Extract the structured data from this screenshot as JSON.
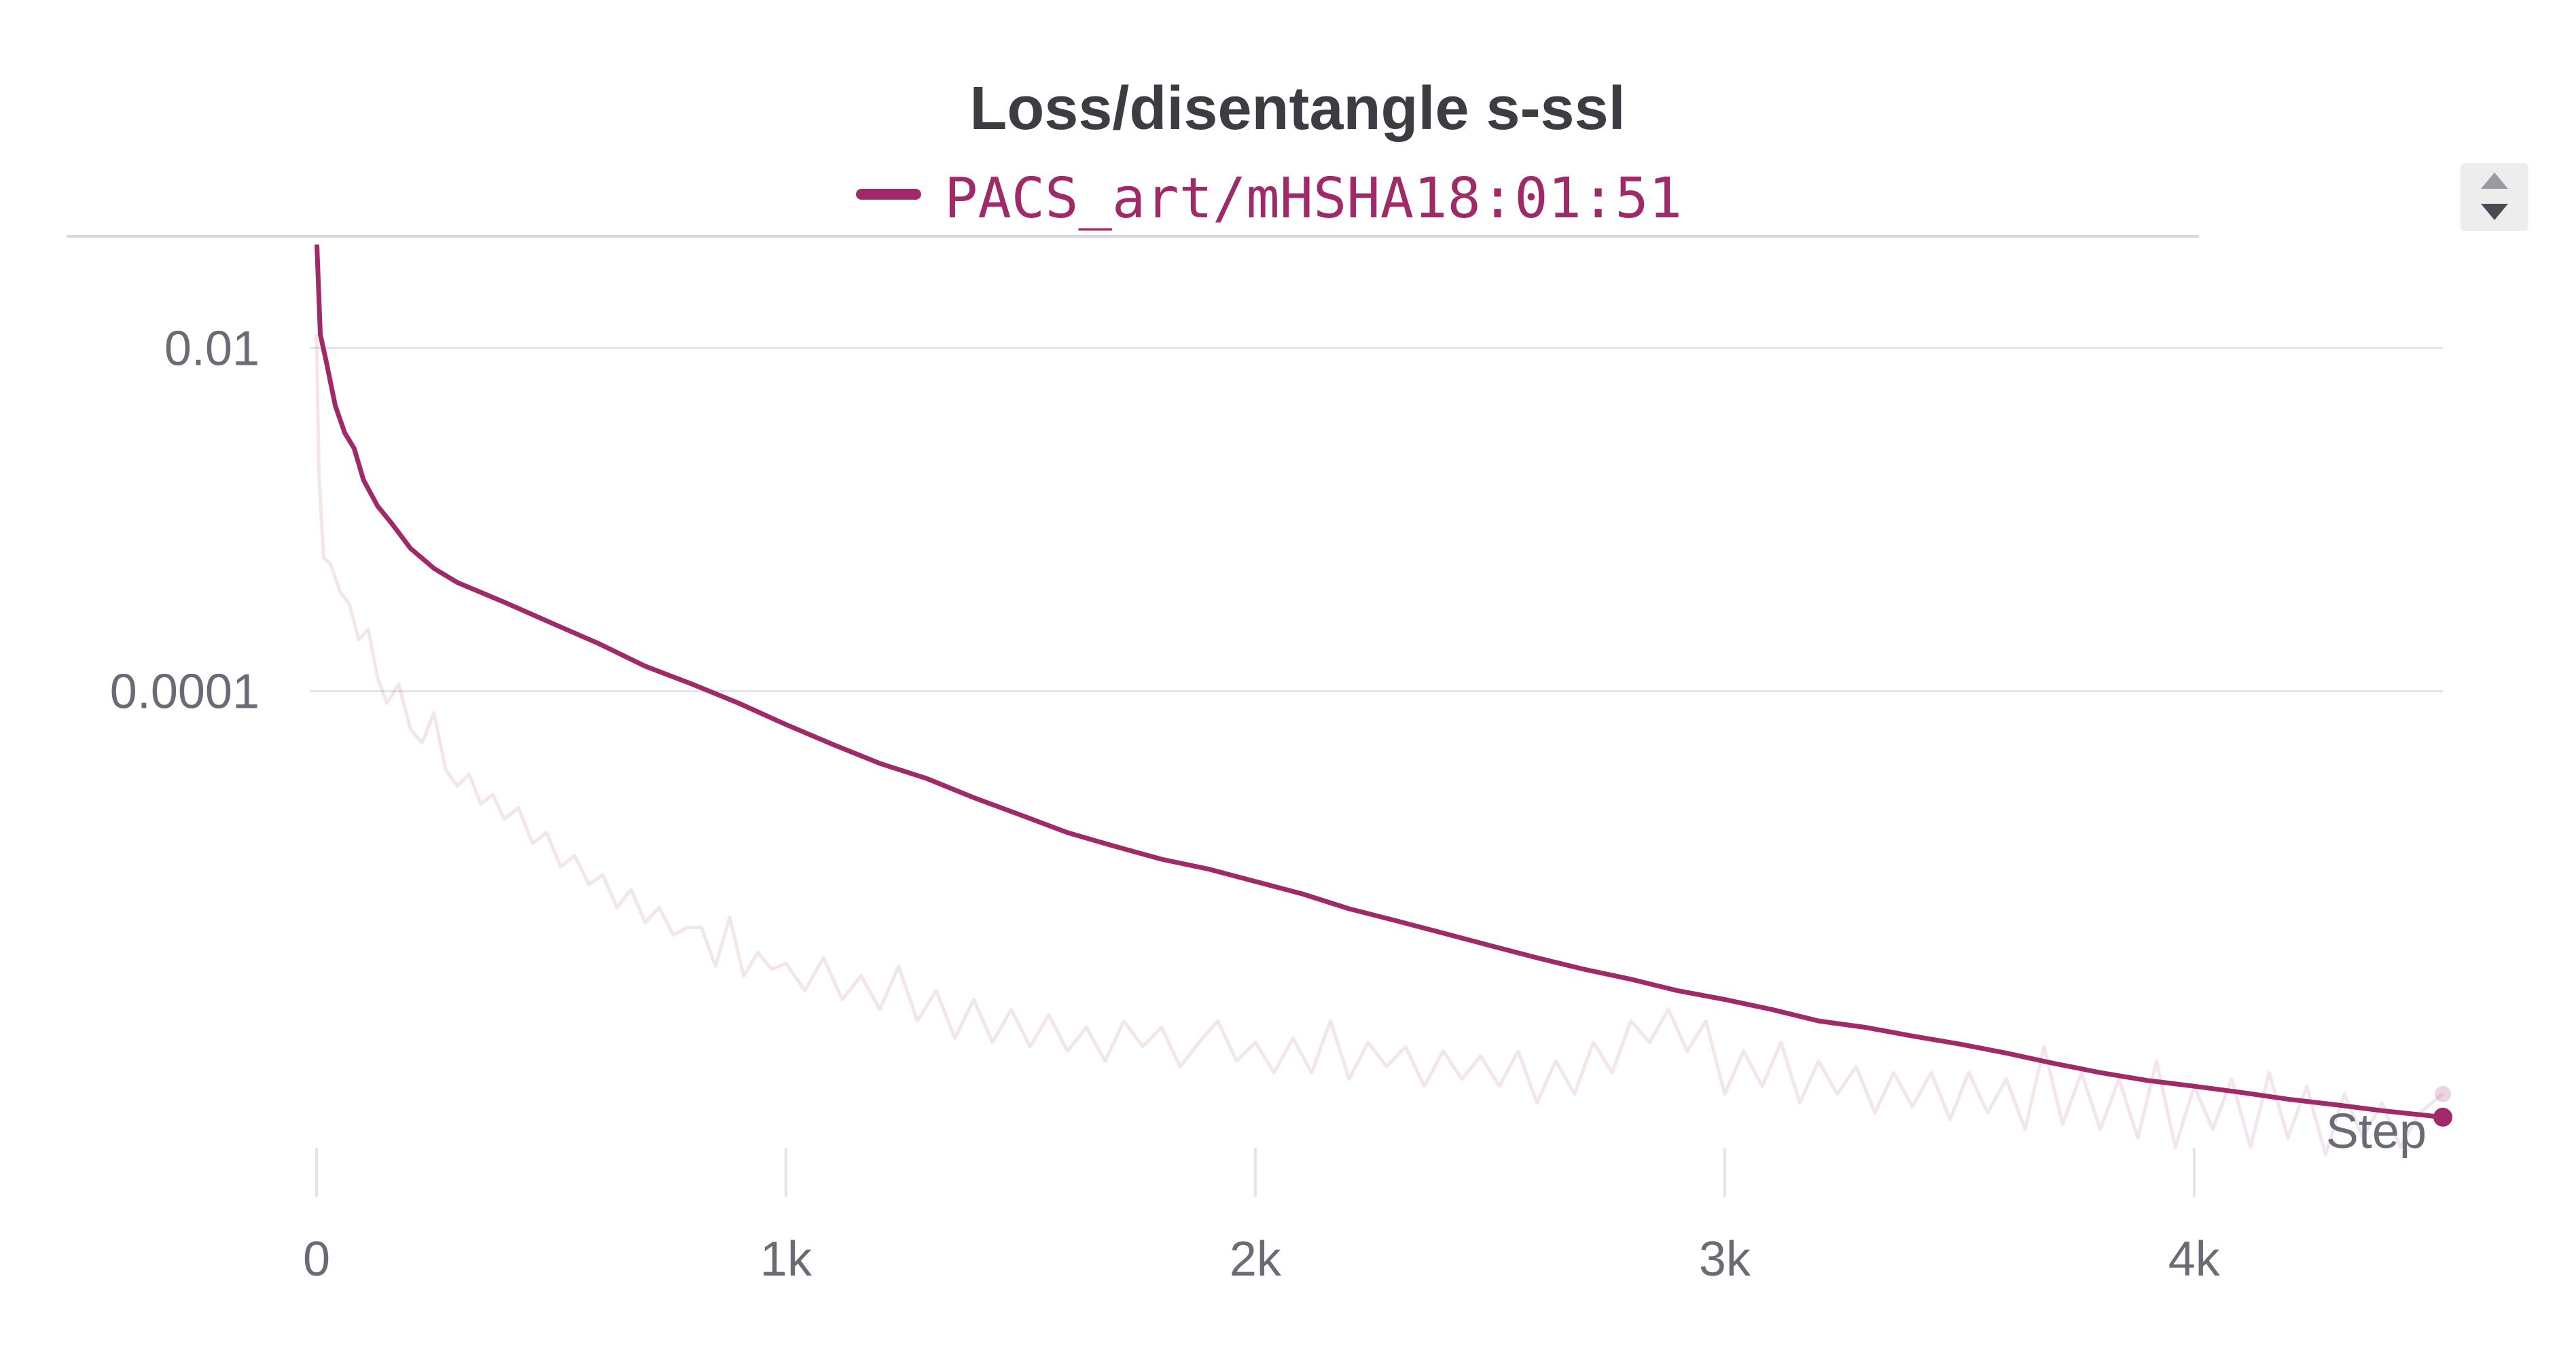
{
  "chart_data": {
    "type": "line",
    "title": "Loss/disentangle s-ssl",
    "xlabel": "Step",
    "ylabel": "",
    "x_tick_labels": [
      "0",
      "1k",
      "2k",
      "3k",
      "4k"
    ],
    "x_ticks": [
      0,
      1000,
      2000,
      3000,
      4000
    ],
    "y_tick_labels": [
      "0.01",
      "0.0001"
    ],
    "y_ticks": [
      0.01,
      0.0001
    ],
    "y_scale": "log",
    "xlim": [
      0,
      4530
    ],
    "ylim_log10": [
      -6.7,
      -1.35
    ],
    "grid": true,
    "legend_position": "top-center",
    "series": [
      {
        "name": "PACS_art/mHSHA18:01:51",
        "color": "#a02a68",
        "smoothed": [
          [
            0,
            0.045
          ],
          [
            8,
            0.012
          ],
          [
            20,
            0.0085
          ],
          [
            40,
            0.0046
          ],
          [
            60,
            0.0032
          ],
          [
            80,
            0.0026
          ],
          [
            100,
            0.0017
          ],
          [
            130,
            0.0012
          ],
          [
            160,
            0.00095
          ],
          [
            200,
            0.00068
          ],
          [
            250,
            0.00052
          ],
          [
            300,
            0.00043
          ],
          [
            400,
            0.00033
          ],
          [
            500,
            0.00025
          ],
          [
            600,
            0.00019
          ],
          [
            700,
            0.00014
          ],
          [
            800,
            0.00011
          ],
          [
            900,
            8.5e-05
          ],
          [
            1000,
            6.4e-05
          ],
          [
            1100,
            4.9e-05
          ],
          [
            1200,
            3.8e-05
          ],
          [
            1300,
            3.1e-05
          ],
          [
            1400,
            2.4e-05
          ],
          [
            1500,
            1.9e-05
          ],
          [
            1600,
            1.5e-05
          ],
          [
            1700,
            1.25e-05
          ],
          [
            1800,
            1.05e-05
          ],
          [
            1900,
            9.2e-06
          ],
          [
            2000,
            7.8e-06
          ],
          [
            2100,
            6.6e-06
          ],
          [
            2200,
            5.4e-06
          ],
          [
            2300,
            4.6e-06
          ],
          [
            2400,
            3.9e-06
          ],
          [
            2500,
            3.3e-06
          ],
          [
            2600,
            2.8e-06
          ],
          [
            2700,
            2.4e-06
          ],
          [
            2800,
            2.1e-06
          ],
          [
            2900,
            1.8e-06
          ],
          [
            3000,
            1.6e-06
          ],
          [
            3100,
            1.4e-06
          ],
          [
            3200,
            1.2e-06
          ],
          [
            3300,
            1.1e-06
          ],
          [
            3400,
            9.8e-07
          ],
          [
            3500,
            8.8e-07
          ],
          [
            3600,
            7.8e-07
          ],
          [
            3700,
            6.8e-07
          ],
          [
            3800,
            6e-07
          ],
          [
            3900,
            5.4e-07
          ],
          [
            4000,
            5e-07
          ],
          [
            4100,
            4.6e-07
          ],
          [
            4200,
            4.2e-07
          ],
          [
            4300,
            3.9e-07
          ],
          [
            4400,
            3.6e-07
          ],
          [
            4530,
            3.3e-07
          ]
        ],
        "raw": [
          [
            0,
            0.012
          ],
          [
            5,
            0.0018
          ],
          [
            15,
            0.0006
          ],
          [
            30,
            0.00055
          ],
          [
            50,
            0.00038
          ],
          [
            70,
            0.00032
          ],
          [
            90,
            0.0002
          ],
          [
            110,
            0.00023
          ],
          [
            130,
            0.00012
          ],
          [
            150,
            8.5e-05
          ],
          [
            175,
            0.00011
          ],
          [
            200,
            6e-05
          ],
          [
            225,
            5e-05
          ],
          [
            250,
            7.5e-05
          ],
          [
            275,
            3.5e-05
          ],
          [
            300,
            2.8e-05
          ],
          [
            325,
            3.3e-05
          ],
          [
            350,
            2.2e-05
          ],
          [
            375,
            2.5e-05
          ],
          [
            400,
            1.8e-05
          ],
          [
            430,
            2.1e-05
          ],
          [
            460,
            1.3e-05
          ],
          [
            490,
            1.5e-05
          ],
          [
            520,
            9.5e-06
          ],
          [
            550,
            1.1e-05
          ],
          [
            580,
            7.5e-06
          ],
          [
            610,
            8.5e-06
          ],
          [
            640,
            5.5e-06
          ],
          [
            670,
            7e-06
          ],
          [
            700,
            4.5e-06
          ],
          [
            730,
            5.5e-06
          ],
          [
            760,
            3.8e-06
          ],
          [
            790,
            4.2e-06
          ],
          [
            820,
            4.2e-06
          ],
          [
            850,
            2.5e-06
          ],
          [
            880,
            4.8e-06
          ],
          [
            910,
            2.2e-06
          ],
          [
            940,
            3e-06
          ],
          [
            970,
            2.4e-06
          ],
          [
            1000,
            2.6e-06
          ],
          [
            1040,
            1.8e-06
          ],
          [
            1080,
            2.8e-06
          ],
          [
            1120,
            1.6e-06
          ],
          [
            1160,
            2.2e-06
          ],
          [
            1200,
            1.4e-06
          ],
          [
            1240,
            2.5e-06
          ],
          [
            1280,
            1.2e-06
          ],
          [
            1320,
            1.8e-06
          ],
          [
            1360,
            9.5e-07
          ],
          [
            1400,
            1.6e-06
          ],
          [
            1440,
            9e-07
          ],
          [
            1480,
            1.4e-06
          ],
          [
            1520,
            8.5e-07
          ],
          [
            1560,
            1.3e-06
          ],
          [
            1600,
            8e-07
          ],
          [
            1640,
            1.1e-06
          ],
          [
            1680,
            7e-07
          ],
          [
            1720,
            1.2e-06
          ],
          [
            1760,
            8.5e-07
          ],
          [
            1800,
            1.1e-06
          ],
          [
            1840,
            6.5e-07
          ],
          [
            1880,
            9e-07
          ],
          [
            1920,
            1.2e-06
          ],
          [
            1960,
            7e-07
          ],
          [
            2000,
            9e-07
          ],
          [
            2040,
            6e-07
          ],
          [
            2080,
            9.5e-07
          ],
          [
            2120,
            6e-07
          ],
          [
            2160,
            1.2e-06
          ],
          [
            2200,
            5.5e-07
          ],
          [
            2240,
            9e-07
          ],
          [
            2280,
            6.5e-07
          ],
          [
            2320,
            8.5e-07
          ],
          [
            2360,
            5e-07
          ],
          [
            2400,
            8e-07
          ],
          [
            2440,
            5.5e-07
          ],
          [
            2480,
            7.5e-07
          ],
          [
            2520,
            5e-07
          ],
          [
            2560,
            8e-07
          ],
          [
            2600,
            4e-07
          ],
          [
            2640,
            7e-07
          ],
          [
            2680,
            4.5e-07
          ],
          [
            2720,
            9e-07
          ],
          [
            2760,
            6e-07
          ],
          [
            2800,
            1.2e-06
          ],
          [
            2840,
            9e-07
          ],
          [
            2880,
            1.4e-06
          ],
          [
            2920,
            8e-07
          ],
          [
            2960,
            1.2e-06
          ],
          [
            3000,
            4.5e-07
          ],
          [
            3040,
            8e-07
          ],
          [
            3080,
            5e-07
          ],
          [
            3120,
            9e-07
          ],
          [
            3160,
            4e-07
          ],
          [
            3200,
            7e-07
          ],
          [
            3240,
            4.5e-07
          ],
          [
            3280,
            6.5e-07
          ],
          [
            3320,
            3.5e-07
          ],
          [
            3360,
            6e-07
          ],
          [
            3400,
            3.8e-07
          ],
          [
            3440,
            6e-07
          ],
          [
            3480,
            3.2e-07
          ],
          [
            3520,
            6e-07
          ],
          [
            3560,
            3.5e-07
          ],
          [
            3600,
            5.5e-07
          ],
          [
            3640,
            2.8e-07
          ],
          [
            3680,
            8.5e-07
          ],
          [
            3720,
            3e-07
          ],
          [
            3760,
            6e-07
          ],
          [
            3800,
            2.8e-07
          ],
          [
            3840,
            5.5e-07
          ],
          [
            3880,
            2.5e-07
          ],
          [
            3920,
            7e-07
          ],
          [
            3960,
            2.2e-07
          ],
          [
            4000,
            5e-07
          ],
          [
            4040,
            2.8e-07
          ],
          [
            4080,
            5.5e-07
          ],
          [
            4120,
            2.2e-07
          ],
          [
            4160,
            6e-07
          ],
          [
            4200,
            2.5e-07
          ],
          [
            4240,
            5e-07
          ],
          [
            4280,
            2e-07
          ],
          [
            4320,
            4.5e-07
          ],
          [
            4360,
            2.5e-07
          ],
          [
            4400,
            4e-07
          ],
          [
            4440,
            2.2e-07
          ],
          [
            4480,
            3.5e-07
          ],
          [
            4530,
            4.5e-07
          ]
        ]
      }
    ]
  }
}
